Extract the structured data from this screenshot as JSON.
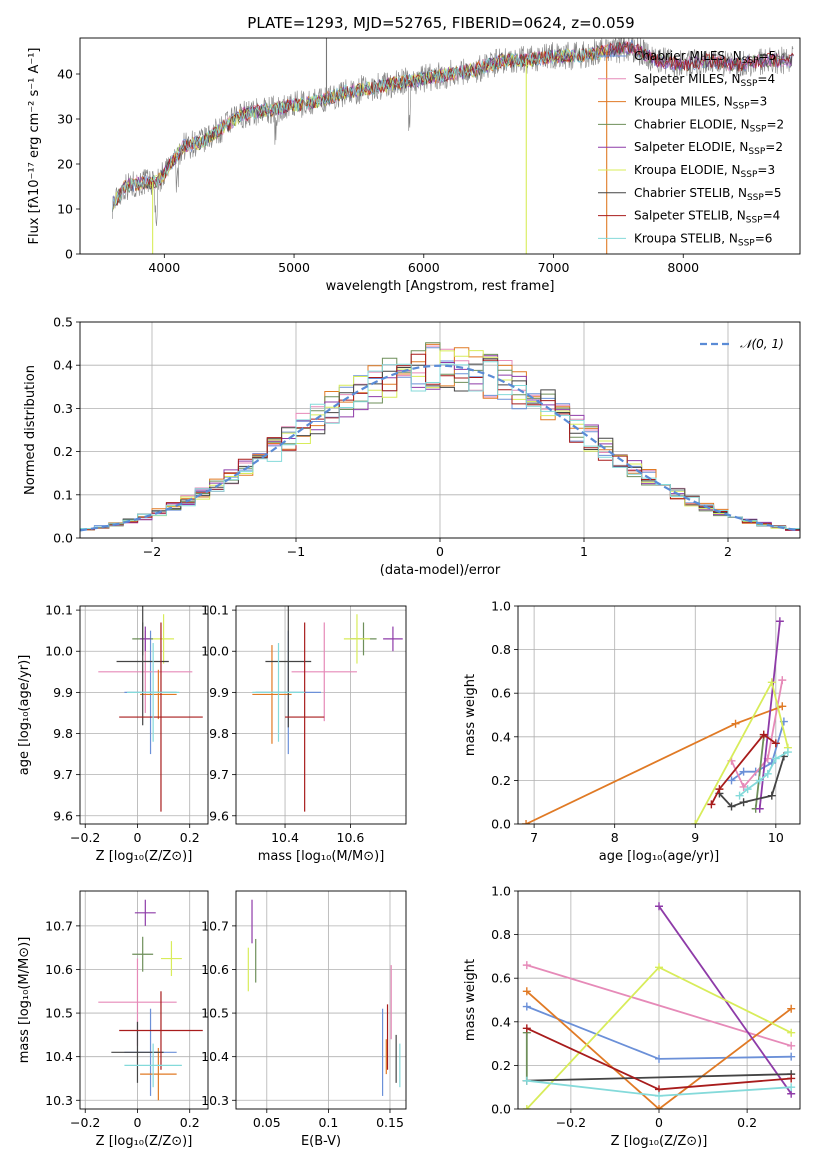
{
  "title": "PLATE=1293, MJD=52765, FIBERID=0624, z=0.059",
  "colors": {
    "Chabrier MILES": "#6b90d8",
    "Salpeter MILES": "#e68ab8",
    "Kroupa MILES": "#e07a25",
    "Chabrier ELODIE": "#6e8f5a",
    "Salpeter ELODIE": "#8e3ba8",
    "Kroupa ELODIE": "#d8ec5a",
    "Chabrier STELIB": "#444444",
    "Salpeter STELIB": "#a81c1c",
    "Kroupa STELIB": "#84dada",
    "data": "#777777"
  },
  "legend": [
    {
      "model": "Chabrier MILES",
      "nssp": "5"
    },
    {
      "model": "Salpeter MILES",
      "nssp": "4"
    },
    {
      "model": "Kroupa MILES",
      "nssp": "3"
    },
    {
      "model": "Chabrier ELODIE",
      "nssp": "2"
    },
    {
      "model": "Salpeter ELODIE",
      "nssp": "2"
    },
    {
      "model": "Kroupa ELODIE",
      "nssp": "3"
    },
    {
      "model": "Chabrier STELIB",
      "nssp": "5"
    },
    {
      "model": "Salpeter STELIB",
      "nssp": "4"
    },
    {
      "model": "Kroupa STELIB",
      "nssp": "6"
    }
  ],
  "chart_data": [
    {
      "id": "spectrum",
      "type": "line",
      "title": "PLATE=1293, MJD=52765, FIBERID=0624, z=0.059",
      "xlabel": "wavelength [Angstrom, rest frame]",
      "ylabel": "Flux [fλ10⁻¹⁷ erg cm⁻² s⁻¹ A⁻¹]",
      "xlim": [
        3350,
        8900
      ],
      "ylim": [
        0,
        48
      ],
      "xticks": [
        4000,
        5000,
        6000,
        7000,
        8000
      ],
      "yticks": [
        0,
        10,
        20,
        30,
        40
      ],
      "continuum": [
        [
          3600,
          11
        ],
        [
          3700,
          15
        ],
        [
          3850,
          16
        ],
        [
          3950,
          16
        ],
        [
          4050,
          20
        ],
        [
          4150,
          24
        ],
        [
          4300,
          25
        ],
        [
          4450,
          28
        ],
        [
          4600,
          31
        ],
        [
          4800,
          32
        ],
        [
          5000,
          33
        ],
        [
          5200,
          34
        ],
        [
          5400,
          36
        ],
        [
          5600,
          37
        ],
        [
          5800,
          38
        ],
        [
          6000,
          39
        ],
        [
          6200,
          40
        ],
        [
          6400,
          41
        ],
        [
          6600,
          43
        ],
        [
          6800,
          43
        ],
        [
          7000,
          44
        ],
        [
          7200,
          44
        ],
        [
          7400,
          45
        ],
        [
          7600,
          46
        ],
        [
          7800,
          43
        ],
        [
          8000,
          42
        ],
        [
          8200,
          43
        ],
        [
          8400,
          42
        ],
        [
          8600,
          43
        ],
        [
          8850,
          43
        ]
      ],
      "spikes": [
        {
          "x": 5250,
          "y": 48,
          "series": "data"
        },
        {
          "x": 3910,
          "y": 0,
          "series": "Kroupa ELODIE"
        },
        {
          "x": 6790,
          "y": 0,
          "series": "Kroupa ELODIE"
        },
        {
          "x": 7410,
          "y": 0,
          "series": "Kroupa MILES"
        }
      ],
      "legend_position": "right"
    },
    {
      "id": "residuals",
      "type": "histogram",
      "xlabel": "(data-model)/error",
      "ylabel": "Normed distribution",
      "xlim": [
        -2.5,
        2.5
      ],
      "ylim": [
        0,
        0.5
      ],
      "xticks": [
        -2,
        -1,
        0,
        1,
        2
      ],
      "yticks": [
        0.0,
        0.1,
        0.2,
        0.3,
        0.4,
        0.5
      ],
      "reference": {
        "label": "𝒩(0, 1)",
        "mean": 0,
        "sigma": 1
      },
      "grid": true,
      "legend_position": "upper right"
    },
    {
      "id": "age_vs_Z",
      "type": "errorbar",
      "xlabel": "Z [log₁₀(Z/Z⊙)]",
      "ylabel": "age  [log₁₀(age/yr)]",
      "xlim": [
        -0.22,
        0.27
      ],
      "ylim": [
        9.58,
        10.11
      ],
      "xticks": [
        -0.2,
        0.0,
        0.2
      ],
      "yticks": [
        9.6,
        9.7,
        9.8,
        9.9,
        10.0,
        10.1
      ],
      "points": [
        {
          "s": "Chabrier MILES",
          "x": 0.05,
          "y": 9.9,
          "xerr": 0.1,
          "yerr": 0.15
        },
        {
          "s": "Salpeter MILES",
          "x": 0.03,
          "y": 9.95,
          "xerr": 0.18,
          "yerr": 0.1
        },
        {
          "s": "Kroupa MILES",
          "x": 0.08,
          "y": 9.895,
          "xerr": 0.07,
          "yerr": 0.06
        },
        {
          "s": "Chabrier ELODIE",
          "x": 0.02,
          "y": 10.03,
          "xerr": 0.04,
          "yerr": 0.04
        },
        {
          "s": "Salpeter ELODIE",
          "x": 0.03,
          "y": 10.03,
          "xerr": 0.02,
          "yerr": 0.03
        },
        {
          "s": "Kroupa ELODIE",
          "x": 0.1,
          "y": 10.03,
          "xerr": 0.04,
          "yerr": 0.06
        },
        {
          "s": "Chabrier STELIB",
          "x": 0.02,
          "y": 9.975,
          "xerr": 0.1,
          "yerr": 0.155
        },
        {
          "s": "Salpeter STELIB",
          "x": 0.09,
          "y": 9.84,
          "xerr": 0.16,
          "yerr": 0.23
        },
        {
          "s": "Kroupa STELIB",
          "x": 0.06,
          "y": 9.9,
          "xerr": 0.1,
          "yerr": 0.12
        }
      ]
    },
    {
      "id": "age_vs_mass",
      "type": "errorbar",
      "xlabel": "mass [log₁₀(M/M⊙)]",
      "ylabel": "",
      "xlim": [
        10.25,
        10.77
      ],
      "ylim": [
        9.58,
        10.11
      ],
      "xticks": [
        10.4,
        10.6
      ],
      "yticks": [
        9.6,
        9.7,
        9.8,
        9.9,
        10.0,
        10.1
      ],
      "points": [
        {
          "s": "Chabrier MILES",
          "x": 10.41,
          "y": 9.9,
          "xerr": 0.1,
          "yerr": 0.15
        },
        {
          "s": "Salpeter MILES",
          "x": 10.52,
          "y": 9.95,
          "xerr": 0.1,
          "yerr": 0.12
        },
        {
          "s": "Kroupa MILES",
          "x": 10.36,
          "y": 9.895,
          "xerr": 0.06,
          "yerr": 0.12
        },
        {
          "s": "Chabrier ELODIE",
          "x": 10.64,
          "y": 10.03,
          "xerr": 0.04,
          "yerr": 0.04
        },
        {
          "s": "Salpeter ELODIE",
          "x": 10.73,
          "y": 10.03,
          "xerr": 0.03,
          "yerr": 0.03
        },
        {
          "s": "Kroupa ELODIE",
          "x": 10.62,
          "y": 10.03,
          "xerr": 0.04,
          "yerr": 0.06
        },
        {
          "s": "Chabrier STELIB",
          "x": 10.41,
          "y": 9.975,
          "xerr": 0.07,
          "yerr": 0.16
        },
        {
          "s": "Salpeter STELIB",
          "x": 10.46,
          "y": 9.84,
          "xerr": 0.06,
          "yerr": 0.23
        },
        {
          "s": "Kroupa STELIB",
          "x": 10.38,
          "y": 9.9,
          "xerr": 0.08,
          "yerr": 0.12
        }
      ]
    },
    {
      "id": "weight_vs_age",
      "type": "line",
      "xlabel": "age  [log₁₀(age/yr)]",
      "ylabel": "mass weight",
      "xlim": [
        6.8,
        10.3
      ],
      "ylim": [
        0,
        1
      ],
      "xticks": [
        7,
        8,
        9,
        10
      ],
      "yticks": [
        0.0,
        0.2,
        0.4,
        0.6,
        0.8,
        1.0
      ],
      "series": [
        {
          "s": "Chabrier MILES",
          "x": [
            9.45,
            9.6,
            9.75,
            9.95,
            10.1
          ],
          "y": [
            0.2,
            0.24,
            0.24,
            0.28,
            0.47
          ]
        },
        {
          "s": "Salpeter MILES",
          "x": [
            9.45,
            9.6,
            9.9,
            10.08
          ],
          "y": [
            0.29,
            0.17,
            0.3,
            0.66
          ]
        },
        {
          "s": "Kroupa MILES",
          "x": [
            6.9,
            9.5,
            10.08
          ],
          "y": [
            0.0,
            0.46,
            0.54
          ]
        },
        {
          "s": "Chabrier ELODIE",
          "x": [
            9.75,
            9.85
          ],
          "y": [
            0.07,
            0.4
          ]
        },
        {
          "s": "Salpeter ELODIE",
          "x": [
            9.8,
            10.05
          ],
          "y": [
            0.07,
            0.93
          ]
        },
        {
          "s": "Kroupa ELODIE",
          "x": [
            9.0,
            9.95,
            10.15
          ],
          "y": [
            0.0,
            0.65,
            0.35
          ]
        },
        {
          "s": "Chabrier STELIB",
          "x": [
            9.3,
            9.45,
            9.6,
            9.95,
            10.1
          ],
          "y": [
            0.14,
            0.08,
            0.1,
            0.13,
            0.31
          ]
        },
        {
          "s": "Salpeter STELIB",
          "x": [
            9.2,
            9.3,
            9.85,
            10.0
          ],
          "y": [
            0.09,
            0.16,
            0.41,
            0.37
          ]
        },
        {
          "s": "Kroupa STELIB",
          "x": [
            9.55,
            9.65,
            9.8,
            9.9,
            10.0,
            10.15
          ],
          "y": [
            0.13,
            0.16,
            0.2,
            0.23,
            0.3,
            0.33
          ]
        }
      ]
    },
    {
      "id": "mass_vs_Z",
      "type": "errorbar",
      "xlabel": "Z [log₁₀(Z/Z⊙)]",
      "ylabel": "mass [log₁₀(M/M⊙)]",
      "xlim": [
        -0.22,
        0.27
      ],
      "ylim": [
        10.28,
        10.78
      ],
      "xticks": [
        -0.2,
        0.0,
        0.2
      ],
      "yticks": [
        10.3,
        10.4,
        10.5,
        10.6,
        10.7
      ],
      "points": [
        {
          "s": "Chabrier MILES",
          "x": 0.05,
          "y": 10.41,
          "xerr": 0.1,
          "yerr": 0.1
        },
        {
          "s": "Salpeter MILES",
          "x": 0.0,
          "y": 10.525,
          "xerr": 0.15,
          "yerr": 0.1
        },
        {
          "s": "Kroupa MILES",
          "x": 0.08,
          "y": 10.36,
          "xerr": 0.07,
          "yerr": 0.06
        },
        {
          "s": "Chabrier ELODIE",
          "x": 0.02,
          "y": 10.635,
          "xerr": 0.04,
          "yerr": 0.04
        },
        {
          "s": "Salpeter ELODIE",
          "x": 0.03,
          "y": 10.73,
          "xerr": 0.04,
          "yerr": 0.03
        },
        {
          "s": "Kroupa ELODIE",
          "x": 0.13,
          "y": 10.625,
          "xerr": 0.04,
          "yerr": 0.04
        },
        {
          "s": "Chabrier STELIB",
          "x": 0.0,
          "y": 10.41,
          "xerr": 0.1,
          "yerr": 0.07
        },
        {
          "s": "Salpeter STELIB",
          "x": 0.09,
          "y": 10.46,
          "xerr": 0.16,
          "yerr": 0.09
        },
        {
          "s": "Kroupa STELIB",
          "x": 0.06,
          "y": 10.38,
          "xerr": 0.11,
          "yerr": 0.05
        }
      ]
    },
    {
      "id": "mass_vs_EBV",
      "type": "errorbar",
      "xlabel": "E(B-V)",
      "ylabel": "",
      "xlim": [
        0.025,
        0.163
      ],
      "ylim": [
        10.28,
        10.78
      ],
      "xticks": [
        0.05,
        0.1,
        0.15
      ],
      "yticks": [
        10.3,
        10.4,
        10.5,
        10.6,
        10.7
      ],
      "points": [
        {
          "s": "Chabrier MILES",
          "x": 0.144,
          "y": 10.41,
          "xerr": 0.0,
          "yerr": 0.1
        },
        {
          "s": "Salpeter MILES",
          "x": 0.151,
          "y": 10.525,
          "xerr": 0.0,
          "yerr": 0.085
        },
        {
          "s": "Kroupa MILES",
          "x": 0.147,
          "y": 10.4,
          "xerr": 0.0,
          "yerr": 0.04
        },
        {
          "s": "Chabrier ELODIE",
          "x": 0.041,
          "y": 10.62,
          "xerr": 0.0,
          "yerr": 0.05
        },
        {
          "s": "Salpeter ELODIE",
          "x": 0.038,
          "y": 10.71,
          "xerr": 0.0,
          "yerr": 0.05
        },
        {
          "s": "Kroupa ELODIE",
          "x": 0.035,
          "y": 10.6,
          "xerr": 0.0,
          "yerr": 0.05
        },
        {
          "s": "Chabrier STELIB",
          "x": 0.155,
          "y": 10.395,
          "xerr": 0.0,
          "yerr": 0.055
        },
        {
          "s": "Salpeter STELIB",
          "x": 0.148,
          "y": 10.445,
          "xerr": 0.0,
          "yerr": 0.075
        },
        {
          "s": "Kroupa STELIB",
          "x": 0.158,
          "y": 10.38,
          "xerr": 0.0,
          "yerr": 0.05
        }
      ]
    },
    {
      "id": "weight_vs_Z",
      "type": "line",
      "xlabel": "Z [log₁₀(Z/Z⊙)]",
      "ylabel": "mass weight",
      "xlim": [
        -0.32,
        0.32
      ],
      "ylim": [
        0,
        1
      ],
      "xticks": [
        -0.2,
        0.0,
        0.2
      ],
      "yticks": [
        0.0,
        0.2,
        0.4,
        0.6,
        0.8,
        1.0
      ],
      "series": [
        {
          "s": "Chabrier MILES",
          "x": [
            -0.3,
            0.0,
            0.3
          ],
          "y": [
            0.47,
            0.23,
            0.24
          ]
        },
        {
          "s": "Salpeter MILES",
          "x": [
            -0.3,
            0.3
          ],
          "y": [
            0.66,
            0.29
          ]
        },
        {
          "s": "Kroupa MILES",
          "x": [
            -0.3,
            0.0,
            0.3
          ],
          "y": [
            0.54,
            0.0,
            0.46
          ]
        },
        {
          "s": "Chabrier ELODIE",
          "x": [
            -0.3,
            -0.3
          ],
          "y": [
            0.13,
            0.35
          ]
        },
        {
          "s": "Salpeter ELODIE",
          "x": [
            0.0,
            0.3
          ],
          "y": [
            0.93,
            0.07
          ]
        },
        {
          "s": "Kroupa ELODIE",
          "x": [
            -0.3,
            0.0,
            0.3
          ],
          "y": [
            0.0,
            0.65,
            0.35
          ]
        },
        {
          "s": "Chabrier STELIB",
          "x": [
            -0.3,
            0.3
          ],
          "y": [
            0.13,
            0.16
          ]
        },
        {
          "s": "Salpeter STELIB",
          "x": [
            -0.3,
            0.0,
            0.3
          ],
          "y": [
            0.37,
            0.09,
            0.14
          ]
        },
        {
          "s": "Kroupa STELIB",
          "x": [
            -0.3,
            0.0,
            0.3
          ],
          "y": [
            0.13,
            0.06,
            0.1
          ]
        }
      ]
    }
  ]
}
